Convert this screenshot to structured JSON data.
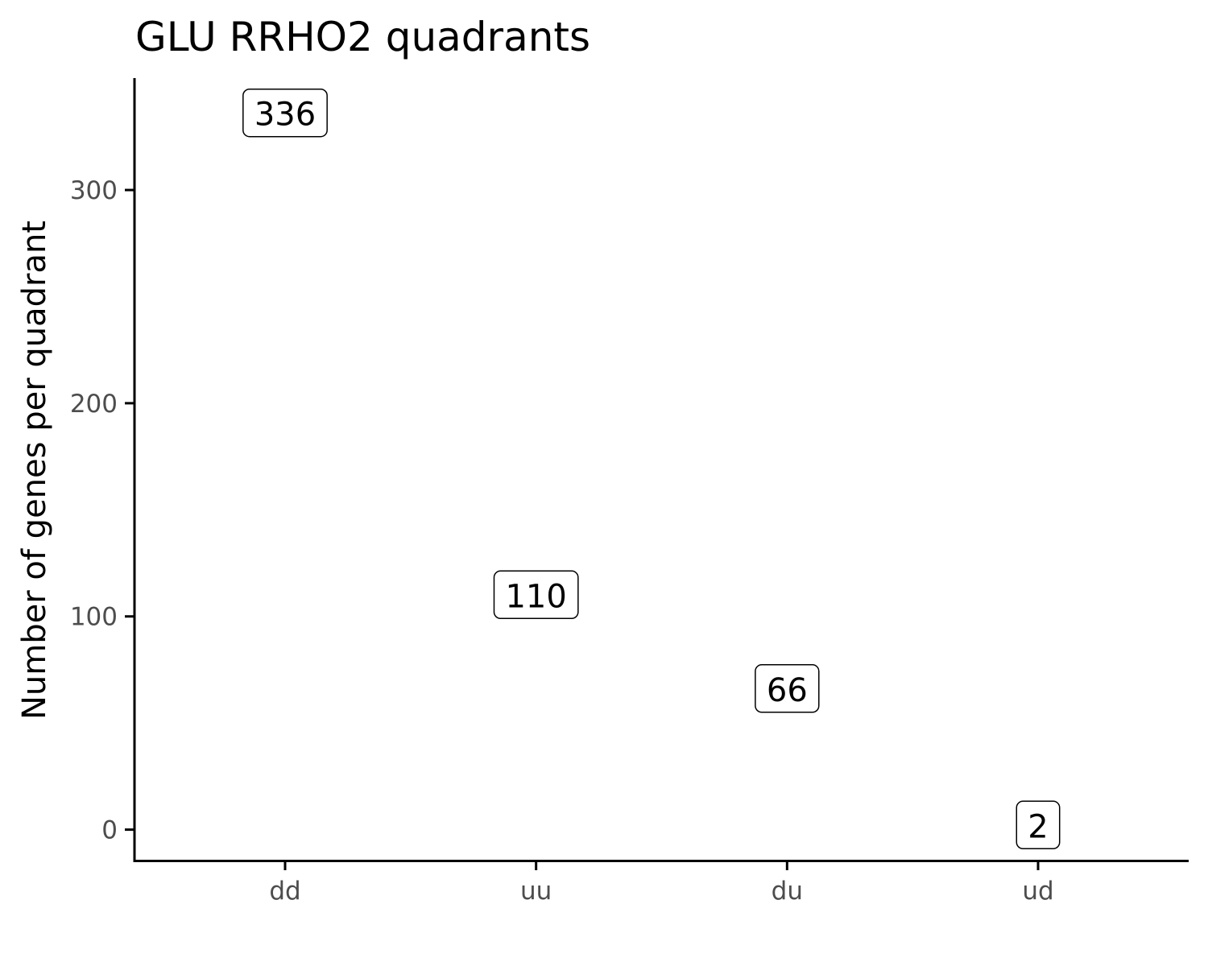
{
  "chart_data": {
    "type": "scatter",
    "title": "GLU RRHO2 quadrants",
    "xlabel": "",
    "ylabel": "Number of genes per quadrant",
    "categories": [
      "dd",
      "uu",
      "du",
      "ud"
    ],
    "values": [
      336,
      110,
      66,
      2
    ],
    "value_labels": [
      "336",
      "110",
      "66",
      "2"
    ],
    "yticks": [
      0,
      100,
      200,
      300
    ],
    "ytick_labels": [
      "0",
      "100",
      "200",
      "300"
    ],
    "ylim": [
      -14.5,
      352.5
    ],
    "grid": false,
    "legend": "none"
  }
}
